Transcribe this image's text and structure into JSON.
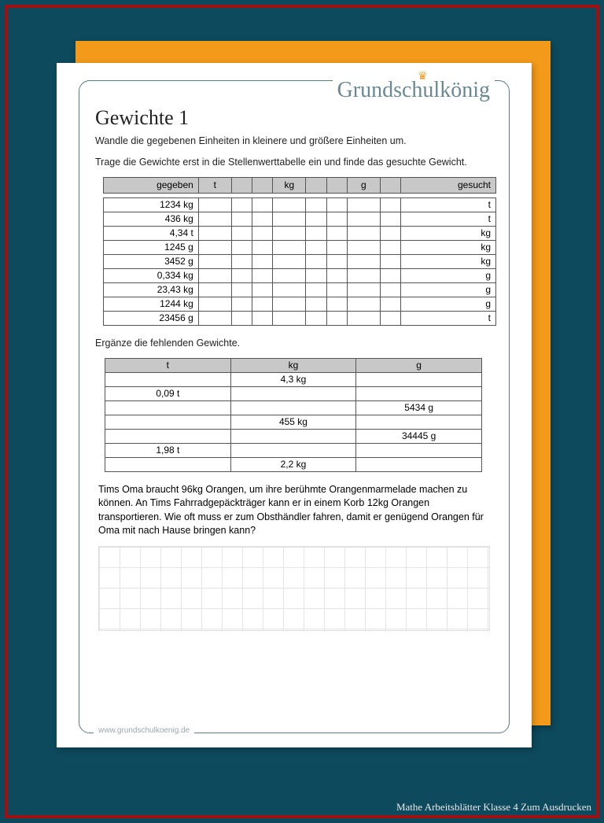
{
  "colors": {
    "page_bg": "#0d4a5e",
    "outer_border": "#a01010",
    "orange": "#f39a1a",
    "frame_border": "#5a7a85",
    "brand_text": "#6a8893",
    "header_fill": "#c8c8c8",
    "grid_line": "#e4e4e4"
  },
  "brand": "Grundschulkönig",
  "title": "Gewichte 1",
  "intro1": "Wandle die gegebenen Einheiten in kleinere und größere Einheiten um.",
  "intro2": "Trage die Gewichte erst in die Stellenwerttabelle ein und finde das gesuchte Gewicht.",
  "table1": {
    "header": {
      "given": "gegeben",
      "t": "t",
      "kg": "kg",
      "g": "g",
      "sought": "gesucht"
    },
    "rows": [
      {
        "given": "1234 kg",
        "sought": "t"
      },
      {
        "given": "436 kg",
        "sought": "t"
      },
      {
        "given": "4,34 t",
        "sought": "kg"
      },
      {
        "given": "1245 g",
        "sought": "kg"
      },
      {
        "given": "3452 g",
        "sought": "kg"
      },
      {
        "given": "0,334 kg",
        "sought": "g"
      },
      {
        "given": "23,43 kg",
        "sought": "g"
      },
      {
        "given": "1244 kg",
        "sought": "g"
      },
      {
        "given": "23456 g",
        "sought": "t"
      }
    ]
  },
  "section2_title": "Ergänze die fehlenden Gewichte.",
  "table2": {
    "columns": [
      "t",
      "kg",
      "g"
    ],
    "rows": [
      [
        "",
        "4,3 kg",
        ""
      ],
      [
        "0,09 t",
        "",
        ""
      ],
      [
        "",
        "",
        "5434 g"
      ],
      [
        "",
        "455 kg",
        ""
      ],
      [
        "",
        "",
        "34445 g"
      ],
      [
        "1,98 t",
        "",
        ""
      ],
      [
        "",
        "2,2 kg",
        ""
      ]
    ]
  },
  "word_problem": "Tims Oma braucht 96kg Orangen, um ihre berühmte Orangenmarmelade machen zu können. An Tims Fahrradgepäckträger kann er in einem Korb 12kg Orangen transportieren. Wie oft muss er zum Obsthändler fahren, damit er genügend Orangen für Oma mit nach Hause bringen kann?",
  "footer_url": "www.grundschulkoenig.de",
  "credit": "Mathe Arbeitsblätter Klasse 4 Zum Ausdrucken"
}
